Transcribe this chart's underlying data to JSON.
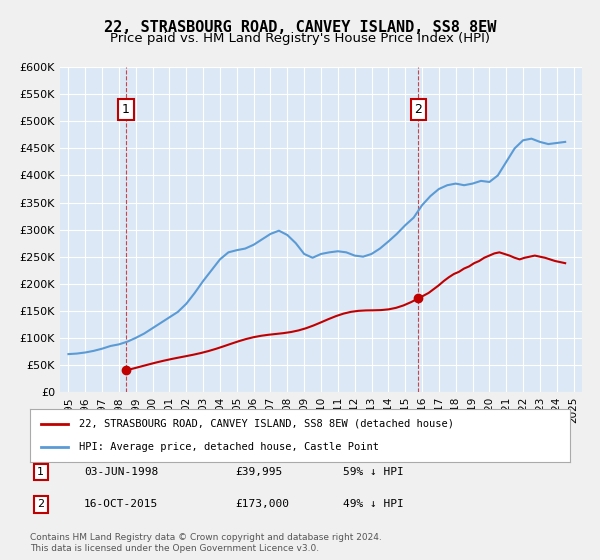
{
  "title": "22, STRASBOURG ROAD, CANVEY ISLAND, SS8 8EW",
  "subtitle": "Price paid vs. HM Land Registry's House Price Index (HPI)",
  "title_fontsize": 11,
  "subtitle_fontsize": 9.5,
  "bg_color": "#e8f0f8",
  "plot_bg_color": "#dce8f5",
  "grid_color": "#ffffff",
  "hpi_color": "#5b9bd5",
  "price_color": "#c00000",
  "annotation_color": "#c00000",
  "purchase1": {
    "date_num": 1998.42,
    "price": 39995,
    "label": "1"
  },
  "purchase2": {
    "date_num": 2015.79,
    "price": 173000,
    "label": "2"
  },
  "legend_label_price": "22, STRASBOURG ROAD, CANVEY ISLAND, SS8 8EW (detached house)",
  "legend_label_hpi": "HPI: Average price, detached house, Castle Point",
  "table_row1": "1    03-JUN-1998         £39,995         59% ↓ HPI",
  "table_row2": "2    16-OCT-2015         £173,000       49% ↓ HPI",
  "footer": "Contains HM Land Registry data © Crown copyright and database right 2024.\nThis data is licensed under the Open Government Licence v3.0.",
  "ylim_min": 0,
  "ylim_max": 600000,
  "yticks": [
    0,
    50000,
    100000,
    150000,
    200000,
    250000,
    300000,
    350000,
    400000,
    450000,
    500000,
    550000,
    600000
  ],
  "xlim_min": 1994.5,
  "xlim_max": 2025.5
}
